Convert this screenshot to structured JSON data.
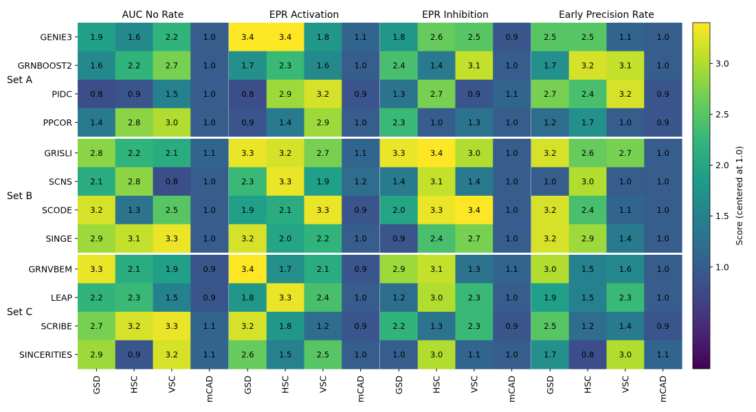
{
  "chart_data": {
    "type": "heatmap",
    "panels": [
      "AUC No Rate",
      "EPR Activation",
      "EPR Inhibition",
      "Early Precision Rate"
    ],
    "columns": [
      "GSD",
      "HSC",
      "VSC",
      "mCAD"
    ],
    "sets": [
      {
        "name": "Set A",
        "rows": [
          "GENIE3",
          "GRNBOOST2",
          "PIDC",
          "PPCOR"
        ]
      },
      {
        "name": "Set B",
        "rows": [
          "GRISLI",
          "SCNS",
          "SCODE",
          "SINGE"
        ]
      },
      {
        "name": "Set C",
        "rows": [
          "GRNVBEM",
          "LEAP",
          "SCRIBE",
          "SINCERITIES"
        ]
      }
    ],
    "values": [
      [
        [
          1.9,
          1.6,
          2.2,
          1.0
        ],
        [
          3.4,
          3.4,
          1.8,
          1.1
        ],
        [
          1.8,
          2.6,
          2.5,
          0.9
        ],
        [
          2.5,
          2.5,
          1.1,
          1.0
        ]
      ],
      [
        [
          1.6,
          2.2,
          2.7,
          1.0
        ],
        [
          1.7,
          2.3,
          1.6,
          1.0
        ],
        [
          2.4,
          1.4,
          3.1,
          1.0
        ],
        [
          1.7,
          3.2,
          3.1,
          1.0
        ]
      ],
      [
        [
          0.8,
          0.9,
          1.5,
          1.0
        ],
        [
          0.8,
          2.9,
          3.2,
          0.9
        ],
        [
          1.3,
          2.7,
          0.9,
          1.1
        ],
        [
          2.7,
          2.4,
          3.2,
          0.9
        ]
      ],
      [
        [
          1.4,
          2.8,
          3.0,
          1.0
        ],
        [
          0.9,
          1.4,
          2.9,
          1.0
        ],
        [
          2.3,
          1.0,
          1.3,
          1.0
        ],
        [
          1.2,
          1.7,
          1.0,
          0.9
        ]
      ],
      [
        [
          2.8,
          2.2,
          2.1,
          1.1
        ],
        [
          3.3,
          3.2,
          2.7,
          1.1
        ],
        [
          3.3,
          3.4,
          3.0,
          1.0
        ],
        [
          3.2,
          2.6,
          2.7,
          1.0
        ]
      ],
      [
        [
          2.1,
          2.8,
          0.8,
          1.0
        ],
        [
          2.3,
          3.3,
          1.9,
          1.2
        ],
        [
          1.4,
          3.1,
          1.4,
          1.0
        ],
        [
          1.0,
          3.0,
          1.0,
          1.0
        ]
      ],
      [
        [
          3.2,
          1.3,
          2.5,
          1.0
        ],
        [
          1.9,
          2.1,
          3.3,
          0.9
        ],
        [
          2.0,
          3.3,
          3.4,
          1.0
        ],
        [
          3.2,
          2.4,
          1.1,
          1.0
        ]
      ],
      [
        [
          2.9,
          3.1,
          3.3,
          1.0
        ],
        [
          3.2,
          2.0,
          2.2,
          1.0
        ],
        [
          0.9,
          2.4,
          2.7,
          1.0
        ],
        [
          3.2,
          2.9,
          1.4,
          1.0
        ]
      ],
      [
        [
          3.3,
          2.1,
          1.9,
          0.9
        ],
        [
          3.4,
          1.7,
          2.1,
          0.9
        ],
        [
          2.9,
          3.1,
          1.3,
          1.1
        ],
        [
          3.0,
          1.5,
          1.6,
          1.0
        ]
      ],
      [
        [
          2.2,
          2.3,
          1.5,
          0.9
        ],
        [
          1.8,
          3.3,
          2.4,
          1.0
        ],
        [
          1.2,
          3.0,
          2.3,
          1.0
        ],
        [
          1.9,
          1.5,
          2.3,
          1.0
        ]
      ],
      [
        [
          2.7,
          3.2,
          3.3,
          1.1
        ],
        [
          3.2,
          1.8,
          1.2,
          0.9
        ],
        [
          2.2,
          1.3,
          2.3,
          0.9
        ],
        [
          2.5,
          1.2,
          1.4,
          0.9
        ]
      ],
      [
        [
          2.9,
          0.9,
          3.2,
          1.1
        ],
        [
          2.6,
          1.5,
          2.5,
          1.0
        ],
        [
          1.0,
          3.0,
          1.1,
          1.0
        ],
        [
          1.7,
          0.8,
          3.0,
          1.1
        ]
      ]
    ],
    "colorscale": "viridis",
    "colorbar": {
      "label": "Score (centered at 1.0)",
      "ticks": [
        "1.0",
        "1.5",
        "2.0",
        "2.5",
        "3.0"
      ],
      "range": [
        0.0,
        3.4
      ]
    }
  }
}
